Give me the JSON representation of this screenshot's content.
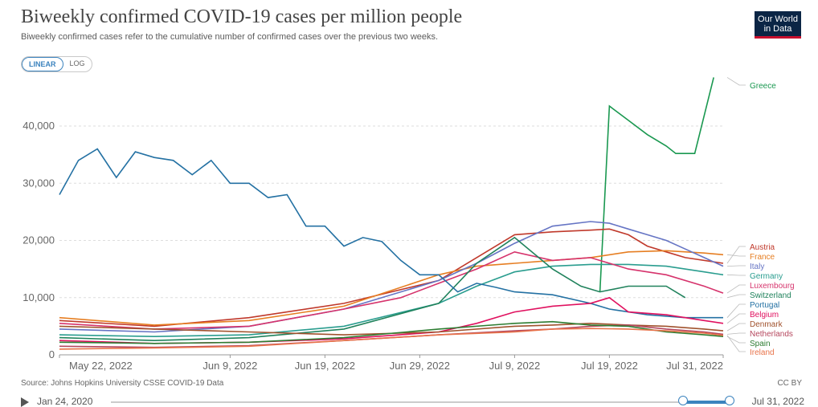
{
  "header": {
    "title": "Biweekly confirmed COVID-19 cases per million people",
    "subtitle": "Biweekly confirmed cases refer to the cumulative number of confirmed cases over the previous two weeks.",
    "logo": "Our World in Data"
  },
  "toggle": {
    "linear": "LINEAR",
    "log": "LOG"
  },
  "footer": {
    "source": "Source: Johns Hopkins University CSSE COVID-19 Data",
    "license": "CC BY"
  },
  "timeline": {
    "start": "Jan 24, 2020",
    "end": "Jul 31, 2022"
  },
  "chart_data": {
    "type": "line",
    "y_ticks": [
      0,
      10000,
      20000,
      30000,
      40000
    ],
    "y_tick_labels": [
      "0",
      "10,000",
      "20,000",
      "30,000",
      "40,000"
    ],
    "x_ticks": [
      0,
      18,
      28,
      38,
      48,
      58,
      70
    ],
    "x_tick_labels": [
      "May 22, 2022",
      "Jun 9, 2022",
      "Jun 19, 2022",
      "Jun 29, 2022",
      "Jul 9, 2022",
      "Jul 19, 2022",
      "Jul 31, 2022"
    ],
    "ylim": [
      0,
      48000
    ],
    "xlim": [
      0,
      70
    ],
    "grid": true,
    "legend": "right",
    "series": [
      {
        "name": "Greece",
        "color": "#1a9850",
        "points": [
          [
            57,
            11000
          ],
          [
            58,
            43500
          ],
          [
            60,
            41000
          ],
          [
            62,
            38500
          ],
          [
            64,
            36500
          ],
          [
            65,
            35200
          ],
          [
            67,
            35200
          ],
          [
            69,
            48500
          ]
        ]
      },
      {
        "name": "Austria",
        "color": "#c0392b",
        "points": [
          [
            0,
            6000
          ],
          [
            10,
            5000
          ],
          [
            20,
            6500
          ],
          [
            30,
            9000
          ],
          [
            40,
            13000
          ],
          [
            44,
            17000
          ],
          [
            48,
            21000
          ],
          [
            52,
            21500
          ],
          [
            56,
            21800
          ],
          [
            58,
            22000
          ],
          [
            60,
            21000
          ],
          [
            62,
            19000
          ],
          [
            64,
            18000
          ],
          [
            66,
            17000
          ],
          [
            70,
            16000
          ]
        ]
      },
      {
        "name": "France",
        "color": "#e67e22",
        "points": [
          [
            0,
            6500
          ],
          [
            10,
            5200
          ],
          [
            20,
            6000
          ],
          [
            30,
            8500
          ],
          [
            40,
            14000
          ],
          [
            44,
            15500
          ],
          [
            48,
            16000
          ],
          [
            52,
            16500
          ],
          [
            56,
            17000
          ],
          [
            60,
            18000
          ],
          [
            64,
            18200
          ],
          [
            68,
            17800
          ],
          [
            70,
            17500
          ]
        ]
      },
      {
        "name": "Italy",
        "color": "#6574c4",
        "points": [
          [
            0,
            4500
          ],
          [
            10,
            4000
          ],
          [
            20,
            5000
          ],
          [
            30,
            8000
          ],
          [
            40,
            13000
          ],
          [
            44,
            16000
          ],
          [
            48,
            19500
          ],
          [
            52,
            22500
          ],
          [
            56,
            23300
          ],
          [
            58,
            23000
          ],
          [
            60,
            22000
          ],
          [
            62,
            21000
          ],
          [
            64,
            20000
          ],
          [
            66,
            18500
          ],
          [
            68,
            17000
          ],
          [
            70,
            15500
          ]
        ]
      },
      {
        "name": "Germany",
        "color": "#2a9d8f",
        "points": [
          [
            0,
            3500
          ],
          [
            10,
            3200
          ],
          [
            20,
            3500
          ],
          [
            30,
            5000
          ],
          [
            40,
            9000
          ],
          [
            44,
            12000
          ],
          [
            48,
            14500
          ],
          [
            52,
            15500
          ],
          [
            56,
            15800
          ],
          [
            60,
            15800
          ],
          [
            64,
            15500
          ],
          [
            68,
            14500
          ],
          [
            70,
            14000
          ]
        ]
      },
      {
        "name": "Luxembourg",
        "color": "#d6336c",
        "points": [
          [
            0,
            5500
          ],
          [
            10,
            4500
          ],
          [
            20,
            5000
          ],
          [
            30,
            8000
          ],
          [
            36,
            10000
          ],
          [
            40,
            12500
          ],
          [
            44,
            15000
          ],
          [
            48,
            18000
          ],
          [
            52,
            16500
          ],
          [
            56,
            17000
          ],
          [
            60,
            15000
          ],
          [
            64,
            14000
          ],
          [
            68,
            12000
          ],
          [
            70,
            10800
          ]
        ]
      },
      {
        "name": "Switzerland",
        "color": "#20825c",
        "points": [
          [
            0,
            3000
          ],
          [
            10,
            2500
          ],
          [
            20,
            3000
          ],
          [
            30,
            4500
          ],
          [
            40,
            9000
          ],
          [
            44,
            16000
          ],
          [
            48,
            20500
          ],
          [
            52,
            15000
          ],
          [
            55,
            12000
          ],
          [
            57,
            11000
          ],
          [
            60,
            12000
          ],
          [
            64,
            12000
          ],
          [
            66,
            10000
          ]
        ]
      },
      {
        "name": "Portugal",
        "color": "#2471a3",
        "points": [
          [
            0,
            28000
          ],
          [
            2,
            34000
          ],
          [
            4,
            36000
          ],
          [
            6,
            31000
          ],
          [
            8,
            35500
          ],
          [
            10,
            34500
          ],
          [
            12,
            34000
          ],
          [
            14,
            31500
          ],
          [
            16,
            34000
          ],
          [
            18,
            30000
          ],
          [
            20,
            30000
          ],
          [
            22,
            27500
          ],
          [
            24,
            28000
          ],
          [
            26,
            22500
          ],
          [
            28,
            22500
          ],
          [
            30,
            19000
          ],
          [
            32,
            20500
          ],
          [
            34,
            19800
          ],
          [
            36,
            16500
          ],
          [
            38,
            14000
          ],
          [
            40,
            14000
          ],
          [
            42,
            11000
          ],
          [
            44,
            12500
          ],
          [
            46,
            11800
          ],
          [
            48,
            11000
          ],
          [
            52,
            10500
          ],
          [
            56,
            9000
          ],
          [
            58,
            8000
          ],
          [
            62,
            7000
          ],
          [
            66,
            6500
          ],
          [
            70,
            6500
          ]
        ]
      },
      {
        "name": "Belgium",
        "color": "#e0115f",
        "points": [
          [
            0,
            2500
          ],
          [
            10,
            2000
          ],
          [
            20,
            2200
          ],
          [
            30,
            2800
          ],
          [
            40,
            4000
          ],
          [
            44,
            5500
          ],
          [
            48,
            7500
          ],
          [
            52,
            8500
          ],
          [
            56,
            9000
          ],
          [
            58,
            10000
          ],
          [
            60,
            7500
          ],
          [
            64,
            7000
          ],
          [
            68,
            6000
          ],
          [
            70,
            5500
          ]
        ]
      },
      {
        "name": "Denmark",
        "color": "#a0522d",
        "points": [
          [
            0,
            5000
          ],
          [
            10,
            4500
          ],
          [
            20,
            4000
          ],
          [
            30,
            3500
          ],
          [
            40,
            4000
          ],
          [
            48,
            5000
          ],
          [
            52,
            5200
          ],
          [
            56,
            5500
          ],
          [
            60,
            5200
          ],
          [
            64,
            5000
          ],
          [
            68,
            4500
          ],
          [
            70,
            4200
          ]
        ]
      },
      {
        "name": "Netherlands",
        "color": "#b5475e",
        "points": [
          [
            0,
            1500
          ],
          [
            10,
            1300
          ],
          [
            20,
            1600
          ],
          [
            30,
            2500
          ],
          [
            40,
            3500
          ],
          [
            48,
            4200
          ],
          [
            52,
            4500
          ],
          [
            56,
            5000
          ],
          [
            60,
            5200
          ],
          [
            64,
            4500
          ],
          [
            68,
            4000
          ],
          [
            70,
            3600
          ]
        ]
      },
      {
        "name": "Spain",
        "color": "#2e7d32",
        "points": [
          [
            0,
            2200
          ],
          [
            10,
            2000
          ],
          [
            20,
            2200
          ],
          [
            30,
            3000
          ],
          [
            40,
            4500
          ],
          [
            48,
            5500
          ],
          [
            52,
            5800
          ],
          [
            56,
            5200
          ],
          [
            60,
            5000
          ],
          [
            64,
            4000
          ],
          [
            68,
            3500
          ],
          [
            70,
            3200
          ]
        ]
      },
      {
        "name": "Ireland",
        "color": "#e8734a",
        "points": [
          [
            0,
            1000
          ],
          [
            10,
            1200
          ],
          [
            20,
            1500
          ],
          [
            30,
            2500
          ],
          [
            40,
            3500
          ],
          [
            48,
            4000
          ],
          [
            52,
            4500
          ],
          [
            56,
            4600
          ],
          [
            60,
            4500
          ],
          [
            64,
            4200
          ],
          [
            68,
            3800
          ],
          [
            70,
            3400
          ]
        ]
      }
    ]
  }
}
